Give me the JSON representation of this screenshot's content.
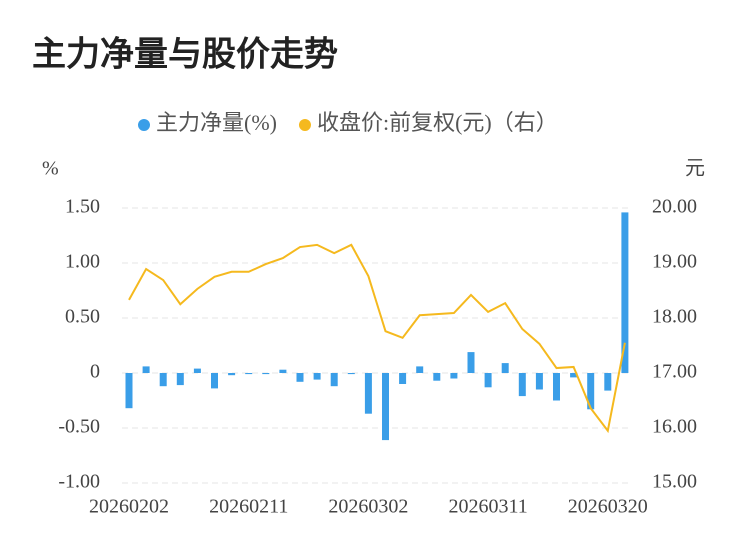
{
  "chart_data": {
    "type": "bar",
    "title": "主力净量与股价走势",
    "y_axis_label": "%",
    "y2_axis_label": "元",
    "categories": [
      "20260202",
      null,
      null,
      null,
      null,
      null,
      null,
      "20260211",
      null,
      null,
      null,
      null,
      null,
      null,
      "20260302",
      null,
      null,
      null,
      null,
      null,
      null,
      "20260311",
      null,
      null,
      null,
      null,
      null,
      null,
      "20260320",
      null
    ],
    "series": [
      {
        "name": "主力净量(%)",
        "type": "bar",
        "color": "#3a9ee8",
        "axis": "y",
        "values": [
          -0.32,
          0.06,
          -0.12,
          -0.11,
          0.04,
          -0.14,
          -0.02,
          -0.01,
          -0.01,
          0.03,
          -0.08,
          -0.06,
          -0.12,
          -0.01,
          -0.37,
          -0.61,
          -0.1,
          0.06,
          -0.07,
          -0.05,
          0.19,
          -0.13,
          0.09,
          -0.21,
          -0.15,
          -0.25,
          -0.04,
          -0.33,
          -0.16,
          1.46
        ]
      },
      {
        "name": "收盘价:前复权(元)（右）",
        "type": "line",
        "color": "#f5b91e",
        "axis": "y2",
        "values": [
          18.33,
          18.89,
          18.69,
          18.25,
          18.53,
          18.75,
          18.84,
          18.84,
          18.98,
          19.09,
          19.29,
          19.33,
          19.18,
          19.33,
          18.76,
          17.76,
          17.64,
          18.05,
          18.07,
          18.09,
          18.42,
          18.11,
          18.27,
          17.8,
          17.53,
          17.09,
          17.11,
          16.36,
          15.95,
          17.55
        ]
      }
    ],
    "ylim": [
      -1.0,
      1.5
    ],
    "yticks": [
      {
        "value": 1.5,
        "label": "1.50"
      },
      {
        "value": 1.0,
        "label": "1.00"
      },
      {
        "value": 0.5,
        "label": "0.50"
      },
      0,
      {
        "value": -0.5,
        "label": "-0.50"
      },
      {
        "value": -1.0,
        "label": "-1.00"
      }
    ],
    "y2lim": [
      15,
      20
    ],
    "y2ticks": [
      {
        "value": 20,
        "label": "20.00"
      },
      {
        "value": 19,
        "label": "19.00"
      },
      {
        "value": 18,
        "label": "18.00"
      },
      {
        "value": 17,
        "label": "17.00"
      },
      {
        "value": 16,
        "label": "16.00"
      },
      {
        "value": 15,
        "label": "15.00"
      }
    ],
    "grid": true,
    "legend": "top"
  }
}
